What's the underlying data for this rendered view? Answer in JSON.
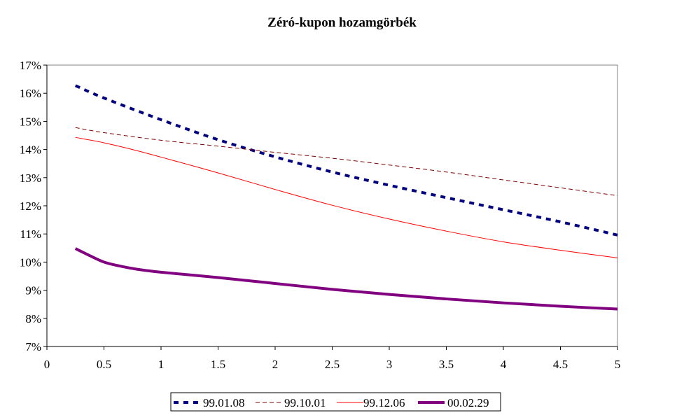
{
  "chart_data": {
    "type": "line",
    "title": "Zéró-kupon hozamgörbék",
    "xlabel": "",
    "ylabel": "",
    "xlim": [
      0,
      5
    ],
    "ylim": [
      7,
      17
    ],
    "x_ticks": [
      "0",
      "0.5",
      "1",
      "1.5",
      "2",
      "2.5",
      "3",
      "3.5",
      "4",
      "4.5",
      "5"
    ],
    "y_ticks": [
      "7%",
      "8%",
      "9%",
      "10%",
      "11%",
      "12%",
      "13%",
      "14%",
      "15%",
      "16%",
      "17%"
    ],
    "grid": false,
    "legend_position": "bottom",
    "series": [
      {
        "name": "99.01.08",
        "color": "#000080",
        "style": "heavy-dashed",
        "x": [
          0.25,
          0.5,
          1,
          1.5,
          2,
          2.5,
          3,
          3.5,
          4,
          4.5,
          5
        ],
        "y": [
          16.27,
          15.83,
          15.06,
          14.35,
          13.74,
          13.2,
          12.73,
          12.29,
          11.86,
          11.43,
          10.96
        ]
      },
      {
        "name": "99.10.01",
        "color": "#800000",
        "style": "dashed",
        "x": [
          0.25,
          0.5,
          1,
          1.5,
          2,
          2.5,
          3,
          3.5,
          4,
          4.5,
          5
        ],
        "y": [
          14.78,
          14.6,
          14.33,
          14.12,
          13.9,
          13.69,
          13.45,
          13.2,
          12.92,
          12.64,
          12.36
        ]
      },
      {
        "name": "99.12.06",
        "color": "#ff0000",
        "style": "solid-thin",
        "x": [
          0.25,
          0.5,
          0.75,
          1,
          1.5,
          2,
          2.5,
          3,
          3.5,
          4,
          4.5,
          5
        ],
        "y": [
          14.43,
          14.24,
          14.0,
          13.73,
          13.17,
          12.58,
          12.02,
          11.53,
          11.1,
          10.72,
          10.42,
          10.15
        ]
      },
      {
        "name": "00.02.29",
        "color": "#800080",
        "style": "solid-thick",
        "x": [
          0.25,
          0.35,
          0.5,
          0.65,
          0.8,
          1,
          1.5,
          2,
          2.5,
          3,
          3.5,
          4,
          4.5,
          5
        ],
        "y": [
          10.48,
          10.28,
          10.0,
          9.85,
          9.74,
          9.64,
          9.45,
          9.24,
          9.03,
          8.85,
          8.69,
          8.55,
          8.43,
          8.33
        ]
      }
    ]
  }
}
